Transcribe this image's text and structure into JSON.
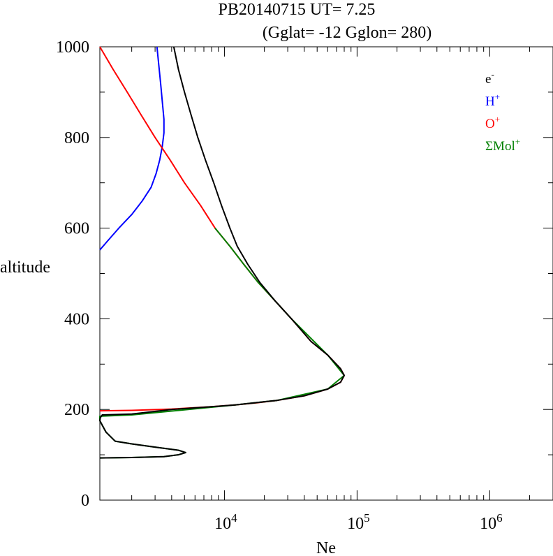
{
  "chart_data": {
    "type": "line",
    "title": "PB20140715   UT=  7.25",
    "subtitle": "(Gglat= -12   Gglon=  280)",
    "xlabel": "Ne",
    "ylabel": "altitude",
    "xscale": "log",
    "xlim": [
      1150,
      3000000
    ],
    "ylim": [
      0,
      1000
    ],
    "x_tick_labels": [
      {
        "value": 10000,
        "base": "10",
        "exp": "4"
      },
      {
        "value": 100000,
        "base": "10",
        "exp": "5"
      },
      {
        "value": 1000000,
        "base": "10",
        "exp": "6"
      }
    ],
    "y_tick_labels": [
      "0",
      "200",
      "400",
      "600",
      "800",
      "1000"
    ],
    "y_ticks": [
      0,
      200,
      400,
      600,
      800,
      1000
    ],
    "legend": {
      "placement": "top-right",
      "entries": [
        {
          "base": "e",
          "sup": "-",
          "color": "#000000"
        },
        {
          "base": "H",
          "sup": "+",
          "color": "#0000ff"
        },
        {
          "base": "O",
          "sup": "+",
          "color": "#ff0000"
        },
        {
          "base": "ΣMol",
          "sup": "+",
          "color": "#008000"
        }
      ]
    },
    "series": [
      {
        "name": "H+",
        "color": "#0000ff",
        "points": [
          [
            1150,
            552
          ],
          [
            1300,
            570
          ],
          [
            1600,
            600
          ],
          [
            2000,
            630
          ],
          [
            2400,
            660
          ],
          [
            2800,
            690
          ],
          [
            3050,
            720
          ],
          [
            3250,
            750
          ],
          [
            3400,
            780
          ],
          [
            3500,
            810
          ],
          [
            3500,
            840
          ],
          [
            3400,
            880
          ],
          [
            3300,
            920
          ],
          [
            3200,
            960
          ],
          [
            3100,
            1000
          ]
        ]
      },
      {
        "name": "O+",
        "color": "#ff0000",
        "points": [
          [
            1150,
            197
          ],
          [
            2000,
            198
          ],
          [
            4000,
            201
          ],
          [
            8000,
            206
          ],
          [
            12000,
            210
          ],
          [
            18000,
            215
          ],
          [
            25000,
            220
          ],
          [
            40000,
            230
          ],
          [
            60000,
            245
          ],
          [
            75000,
            260
          ],
          [
            80000,
            275
          ],
          [
            75000,
            290
          ],
          [
            60000,
            320
          ],
          [
            45000,
            350
          ],
          [
            32000,
            400
          ],
          [
            24000,
            440
          ],
          [
            18000,
            480
          ],
          [
            14000,
            520
          ],
          [
            11000,
            560
          ],
          [
            8500,
            600
          ],
          [
            6600,
            650
          ],
          [
            5000,
            700
          ],
          [
            3900,
            750
          ],
          [
            3000,
            800
          ],
          [
            2350,
            850
          ],
          [
            1850,
            900
          ],
          [
            1450,
            950
          ],
          [
            1150,
            1000
          ]
        ]
      },
      {
        "name": "ΣMol+",
        "color": "#008000",
        "points": [
          [
            1150,
            93
          ],
          [
            2000,
            94
          ],
          [
            3500,
            96
          ],
          [
            4500,
            100
          ],
          [
            5100,
            105
          ],
          [
            4500,
            110
          ],
          [
            3000,
            117
          ],
          [
            2000,
            124
          ],
          [
            1500,
            130
          ],
          [
            1280,
            150
          ],
          [
            1150,
            175
          ],
          [
            1150,
            185
          ],
          [
            2000,
            188
          ],
          [
            8000,
            205
          ],
          [
            12000,
            210
          ],
          [
            25000,
            220
          ],
          [
            60000,
            245
          ],
          [
            80000,
            275
          ],
          [
            60000,
            320
          ],
          [
            32000,
            400
          ],
          [
            24000,
            440
          ],
          [
            18000,
            480
          ],
          [
            14000,
            520
          ],
          [
            11000,
            560
          ],
          [
            8500,
            600
          ]
        ]
      },
      {
        "name": "e-",
        "color": "#000000",
        "points": [
          [
            1150,
            93
          ],
          [
            2000,
            94
          ],
          [
            3500,
            96
          ],
          [
            4500,
            100
          ],
          [
            5100,
            105
          ],
          [
            4500,
            110
          ],
          [
            3000,
            117
          ],
          [
            2000,
            124
          ],
          [
            1500,
            130
          ],
          [
            1280,
            150
          ],
          [
            1150,
            175
          ],
          [
            1160,
            182
          ],
          [
            1200,
            188
          ],
          [
            2000,
            190
          ],
          [
            4000,
            200
          ],
          [
            8000,
            206
          ],
          [
            12000,
            210
          ],
          [
            25000,
            220
          ],
          [
            40000,
            230
          ],
          [
            60000,
            245
          ],
          [
            75000,
            260
          ],
          [
            80000,
            275
          ],
          [
            75000,
            290
          ],
          [
            60000,
            320
          ],
          [
            45000,
            350
          ],
          [
            32000,
            400
          ],
          [
            24000,
            440
          ],
          [
            18500,
            480
          ],
          [
            15000,
            520
          ],
          [
            12500,
            560
          ],
          [
            11000,
            600
          ],
          [
            9500,
            650
          ],
          [
            8300,
            700
          ],
          [
            7200,
            750
          ],
          [
            6300,
            800
          ],
          [
            5600,
            850
          ],
          [
            5000,
            900
          ],
          [
            4500,
            950
          ],
          [
            4150,
            1000
          ]
        ]
      }
    ]
  }
}
